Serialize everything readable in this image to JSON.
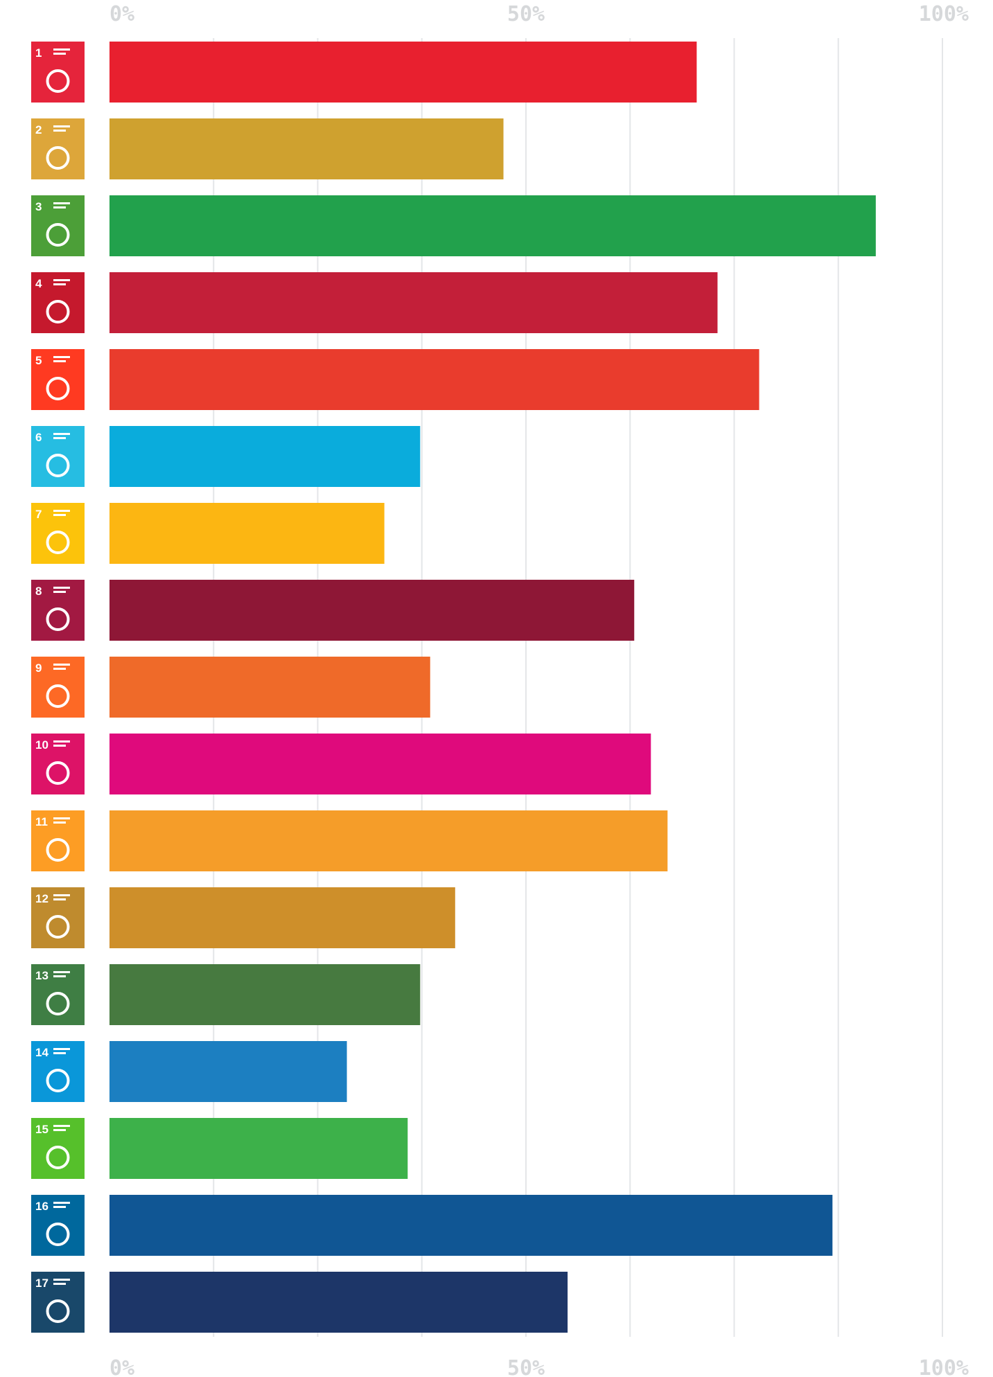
{
  "chart_data": {
    "type": "bar",
    "orientation": "horizontal",
    "title": "",
    "xlabel": "",
    "ylabel": "",
    "xlim": [
      0,
      100
    ],
    "grid": true,
    "tick_labels": [
      "0%",
      "50%",
      "100%"
    ],
    "categories": [
      "1",
      "2",
      "3",
      "4",
      "5",
      "6",
      "7",
      "8",
      "9",
      "10",
      "11",
      "12",
      "13",
      "14",
      "15",
      "16",
      "17"
    ],
    "values": [
      70.5,
      47.3,
      92,
      73,
      78,
      37.3,
      33,
      63,
      38.5,
      65,
      67,
      41.5,
      37.3,
      28.5,
      35.8,
      86.8,
      55
    ],
    "colors": [
      "#e5243b",
      "#dda63a",
      "#4c9f38",
      "#c5192d",
      "#ff3a21",
      "#26bde2",
      "#fcc30b",
      "#a21942",
      "#fd6925",
      "#dd1367",
      "#fd9d24",
      "#bf8b2e",
      "#3f7e44",
      "#0a97d9",
      "#56c02b",
      "#00689d",
      "#19486a"
    ],
    "bar_colors": [
      "#e8202f",
      "#cfa12f",
      "#22a14c",
      "#c31f39",
      "#e93c2d",
      "#0aacdc",
      "#fcb612",
      "#8e1736",
      "#ef6a29",
      "#df0a7c",
      "#f59d29",
      "#ce8f2a",
      "#477a40",
      "#1c7fc1",
      "#3db14a",
      "#105694",
      "#1d3668"
    ]
  },
  "icons": [
    "no-poverty-icon",
    "zero-hunger-icon",
    "good-health-icon",
    "quality-education-icon",
    "gender-equality-icon",
    "clean-water-icon",
    "affordable-energy-icon",
    "decent-work-icon",
    "industry-innovation-icon",
    "reduced-inequalities-icon",
    "sustainable-cities-icon",
    "responsible-consumption-icon",
    "climate-action-icon",
    "life-below-water-icon",
    "life-on-land-icon",
    "peace-justice-icon",
    "partnerships-icon"
  ]
}
